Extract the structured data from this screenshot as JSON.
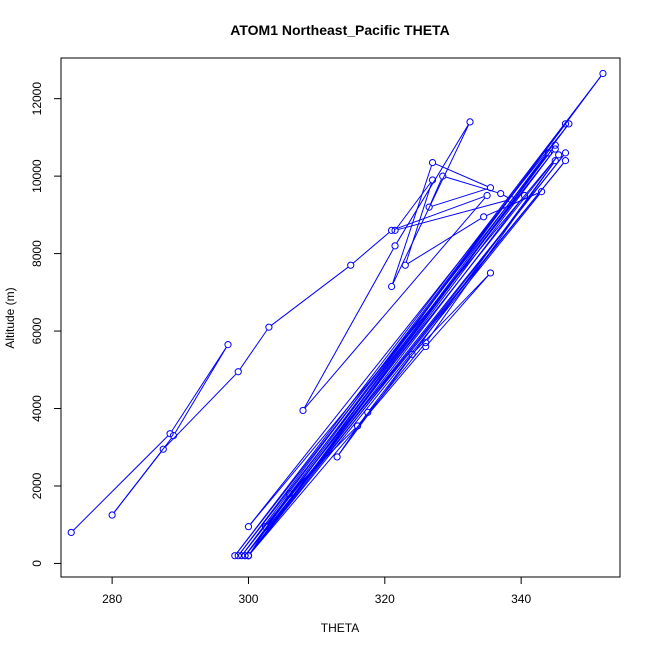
{
  "chart_data": {
    "type": "line",
    "title": "ATOM1 Northeast_Pacific THETA",
    "xlabel": "THETA",
    "ylabel": "Altitude (m)",
    "xlim": [
      272.5,
      354.5
    ],
    "ylim": [
      -350,
      13050
    ],
    "xticks": [
      280,
      300,
      320,
      340
    ],
    "yticks": [
      0,
      2000,
      4000,
      6000,
      8000,
      10000,
      12000
    ],
    "x_tick_labels": [
      "280",
      "300",
      "320",
      "340"
    ],
    "y_tick_labels": [
      "0",
      "2000",
      "4000",
      "6000",
      "8000",
      "10000",
      "12000"
    ],
    "grid": false,
    "legend": "none",
    "series": [
      {
        "color": "#0000ff",
        "markers": "open-circle",
        "points": [
          [
            274,
            800
          ],
          [
            288.5,
            3350
          ],
          [
            297,
            5650
          ],
          [
            289,
            3300
          ],
          [
            280,
            1250
          ],
          [
            287.5,
            2950
          ],
          [
            298.5,
            4950
          ],
          [
            303,
            6100
          ],
          [
            315,
            7700
          ],
          [
            321,
            8600
          ],
          [
            335,
            9500
          ],
          [
            308,
            3950
          ],
          [
            321.5,
            8200
          ],
          [
            332.5,
            11400
          ],
          [
            321,
            7150
          ],
          [
            327,
            10350
          ],
          [
            335.5,
            9700
          ],
          [
            326.5,
            9200
          ],
          [
            328.5,
            10000
          ],
          [
            337,
            9550
          ],
          [
            338.5,
            9400
          ],
          [
            321.5,
            8600
          ],
          [
            327,
            9900
          ],
          [
            323,
            7700
          ],
          [
            334.5,
            8950
          ],
          [
            343,
            9600
          ],
          [
            300,
            200
          ],
          [
            345,
            10700
          ],
          [
            298.5,
            200
          ],
          [
            346.5,
            11350
          ],
          [
            299,
            200
          ],
          [
            345.5,
            10550
          ],
          [
            300,
            950
          ],
          [
            347,
            11350
          ],
          [
            299.5,
            200
          ],
          [
            346.5,
            10400
          ],
          [
            302.5,
            950
          ],
          [
            352,
            12650
          ],
          [
            298,
            200
          ],
          [
            344,
            10600
          ],
          [
            300,
            200
          ],
          [
            306,
            1800
          ],
          [
            316,
            3550
          ],
          [
            326,
            5700
          ],
          [
            345,
            10400
          ],
          [
            313,
            2750
          ],
          [
            317.5,
            3900
          ],
          [
            324,
            5400
          ],
          [
            335.5,
            7500
          ],
          [
            326,
            5600
          ],
          [
            300,
            200
          ],
          [
            346.5,
            10600
          ],
          [
            299.5,
            200
          ],
          [
            345,
            10800
          ],
          [
            300,
            200
          ],
          [
            340.5,
            9500
          ]
        ]
      }
    ]
  }
}
